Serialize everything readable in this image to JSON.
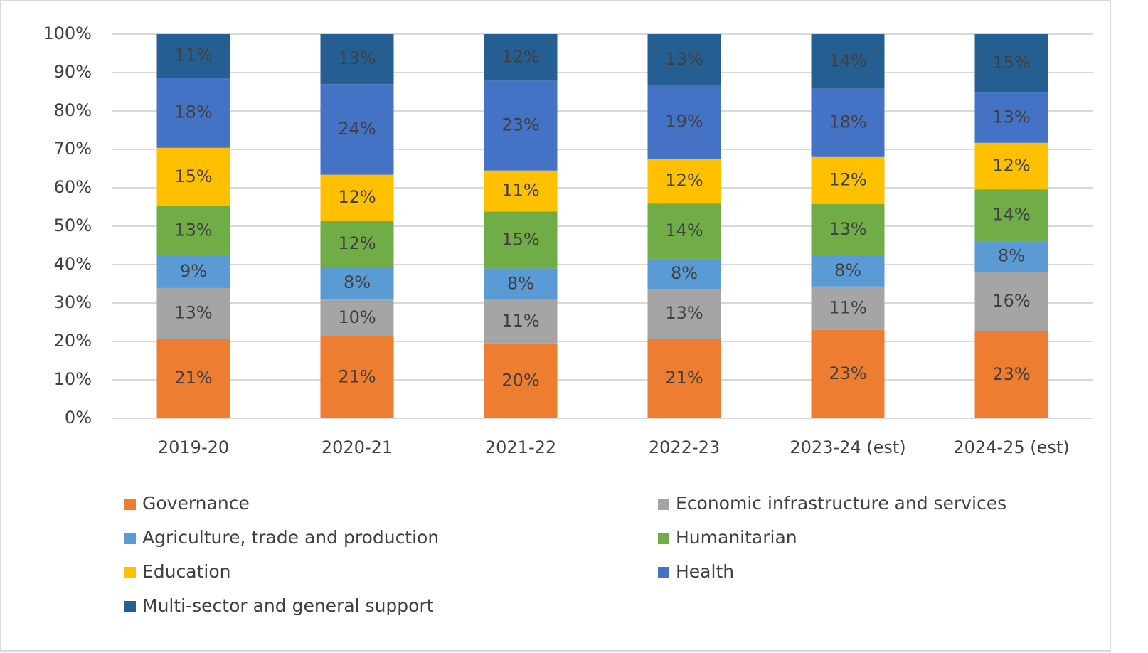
{
  "chart_data": {
    "type": "stacked_bar",
    "categories": [
      "2019-20",
      "2020-21",
      "2021-22",
      "2022-23",
      "2023-24 (est)",
      "2024-25 (est)"
    ],
    "series": [
      {
        "name": "Governance",
        "color": "#ed7d31",
        "values": [
          20.7,
          21.3,
          19.5,
          20.7,
          23.0,
          22.6
        ],
        "value_labels": [
          "21%",
          "21%",
          "20%",
          "21%",
          "23%",
          "23%"
        ]
      },
      {
        "name": "Economic infrastructure and services",
        "color": "#a5a5a5",
        "values": [
          13.2,
          9.6,
          11.3,
          13.0,
          11.3,
          15.5
        ],
        "value_labels": [
          "13%",
          "10%",
          "11%",
          "13%",
          "11%",
          "16%"
        ]
      },
      {
        "name": "Agriculture, trade and production",
        "color": "#5b9bd5",
        "values": [
          8.5,
          8.5,
          8.2,
          7.8,
          8.1,
          8.0
        ],
        "value_labels": [
          "9%",
          "8%",
          "8%",
          "8%",
          "8%",
          "8%"
        ]
      },
      {
        "name": "Humanitarian",
        "color": "#70ad47",
        "values": [
          12.8,
          12.0,
          14.8,
          14.4,
          13.4,
          13.5
        ],
        "value_labels": [
          "13%",
          "12%",
          "15%",
          "14%",
          "13%",
          "14%"
        ]
      },
      {
        "name": "Education",
        "color": "#ffc000",
        "values": [
          15.2,
          12.0,
          10.7,
          11.7,
          12.2,
          12.1
        ],
        "value_labels": [
          "15%",
          "12%",
          "11%",
          "12%",
          "12%",
          "12%"
        ]
      },
      {
        "name": "Health",
        "color": "#4472c4",
        "values": [
          18.3,
          23.6,
          23.4,
          19.1,
          17.8,
          13.1
        ],
        "value_labels": [
          "18%",
          "24%",
          "23%",
          "19%",
          "18%",
          "13%"
        ]
      },
      {
        "name": "Multi-sector and general support",
        "color": "#255e91",
        "values": [
          11.3,
          13.0,
          12.1,
          13.3,
          14.2,
          15.2
        ],
        "value_labels": [
          "11%",
          "13%",
          "12%",
          "13%",
          "14%",
          "15%"
        ]
      }
    ],
    "ylim": [
      0,
      100
    ],
    "yticks": [
      {
        "value": 0,
        "label": "0%"
      },
      {
        "value": 10,
        "label": "10%"
      },
      {
        "value": 20,
        "label": "20%"
      },
      {
        "value": 30,
        "label": "30%"
      },
      {
        "value": 40,
        "label": "40%"
      },
      {
        "value": 50,
        "label": "50%"
      },
      {
        "value": 60,
        "label": "60%"
      },
      {
        "value": 70,
        "label": "70%"
      },
      {
        "value": 80,
        "label": "80%"
      },
      {
        "value": 90,
        "label": "90%"
      },
      {
        "value": 100,
        "label": "100%"
      }
    ],
    "grid": true,
    "legend": "bottom"
  }
}
